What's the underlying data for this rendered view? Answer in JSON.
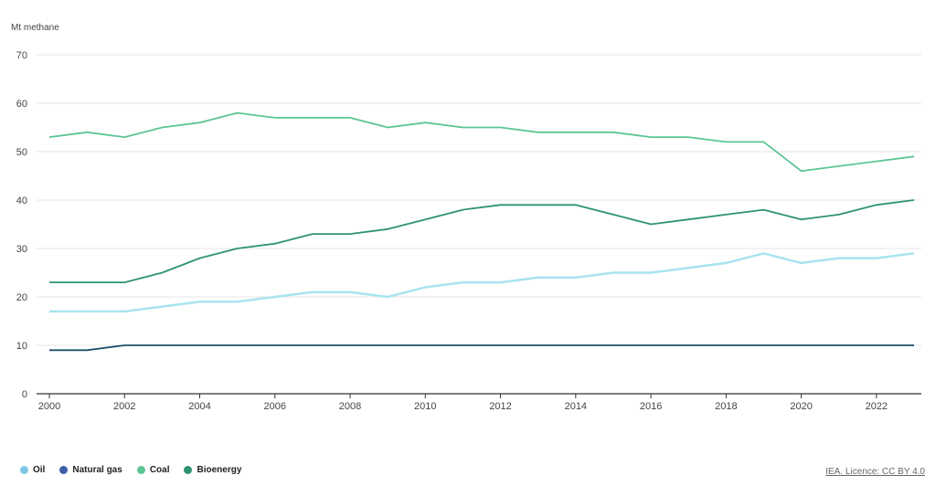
{
  "chart_data": {
    "type": "line",
    "ylabel": "Mt methane",
    "ylim": [
      0,
      70
    ],
    "yticks": [
      0,
      10,
      20,
      30,
      40,
      50,
      60,
      70
    ],
    "xlim": [
      2000,
      2023
    ],
    "xticks": [
      2000,
      2002,
      2004,
      2006,
      2008,
      2010,
      2012,
      2014,
      2016,
      2018,
      2020,
      2022
    ],
    "x": [
      2000,
      2001,
      2002,
      2003,
      2004,
      2005,
      2006,
      2007,
      2008,
      2009,
      2010,
      2011,
      2012,
      2013,
      2014,
      2015,
      2016,
      2017,
      2018,
      2019,
      2020,
      2021,
      2022,
      2023
    ],
    "grid": true,
    "legend_position": "bottom-left",
    "series": [
      {
        "name": "Oil",
        "color": "#a8e4f0",
        "legend_color": "#7ec8e3",
        "values": [
          17,
          17,
          17,
          18,
          19,
          19,
          20,
          21,
          21,
          20,
          22,
          23,
          23,
          24,
          24,
          25,
          25,
          26,
          27,
          29,
          27,
          28,
          28,
          29
        ]
      },
      {
        "name": "Natural gas",
        "color": "#1f4f6b",
        "legend_color": "#3a5fa8",
        "values": [
          9,
          9,
          10,
          10,
          10,
          10,
          10,
          10,
          10,
          10,
          10,
          10,
          10,
          10,
          10,
          10,
          10,
          10,
          10,
          10,
          10,
          10,
          10,
          10
        ]
      },
      {
        "name": "Coal",
        "color": "#5cc595",
        "legend_color": "#5cc595",
        "values": [
          53,
          54,
          53,
          55,
          56,
          58,
          57,
          57,
          57,
          55,
          56,
          55,
          55,
          54,
          54,
          54,
          53,
          53,
          52,
          52,
          46,
          47,
          48,
          49
        ]
      },
      {
        "name": "Bioenergy",
        "color": "#2e9470",
        "legend_color": "#2e9470",
        "values": [
          23,
          23,
          23,
          25,
          28,
          30,
          31,
          33,
          33,
          34,
          36,
          38,
          39,
          39,
          39,
          37,
          35,
          36,
          37,
          38,
          36,
          37,
          39,
          40
        ]
      }
    ]
  },
  "source_text": "IEA. Licence: CC BY 4.0"
}
